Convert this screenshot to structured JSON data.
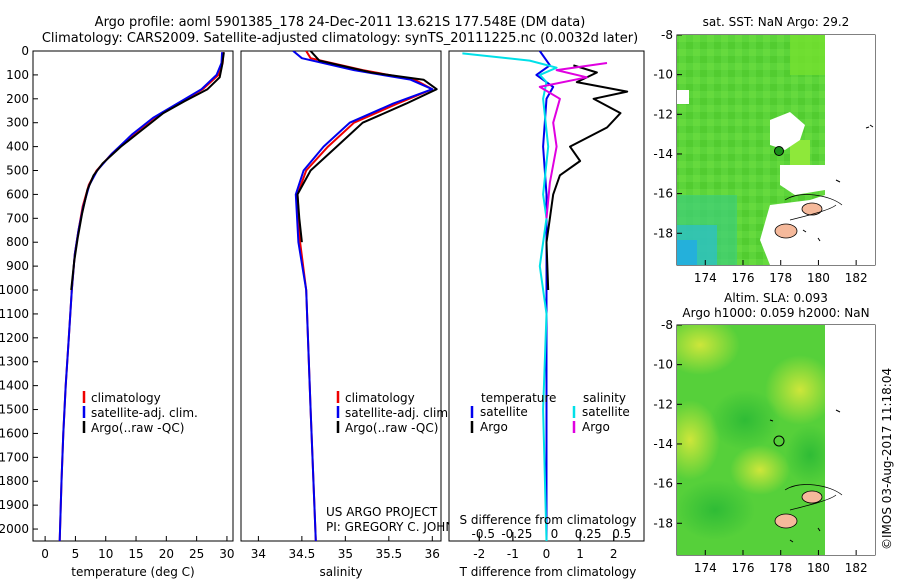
{
  "header": {
    "title_line1": "Argo profile: aoml 5901385_178 24-Dec-2011 13.621S 177.548E (DM data)",
    "title_line2": "Climatology: CARS2009. Satellite-adjusted climatology: synTS_20111225.nc (0.0032d later)"
  },
  "footer": {
    "stamp": "©IMOS 03-Aug-2017 11:18:04"
  },
  "colors": {
    "climatology": "#ee0000",
    "satellite": "#0000ee",
    "argo": "#000000",
    "sal_satellite": "#00e0e8",
    "sal_argo": "#e000e0"
  },
  "chart_data": [
    {
      "type": "line",
      "name": "temperature-profile",
      "xlabel": "temperature (deg C)",
      "ylabel": "",
      "xlim": [
        -2,
        31
      ],
      "ylim": [
        2050,
        0
      ],
      "xticks": [
        0,
        5,
        10,
        15,
        20,
        25,
        30
      ],
      "yticks": [
        0,
        100,
        200,
        300,
        400,
        500,
        600,
        700,
        800,
        900,
        1000,
        1100,
        1200,
        1300,
        1400,
        1500,
        1600,
        1700,
        1800,
        1900,
        2000
      ],
      "legend": [
        "climatology",
        "satellite-adj. clim.",
        "Argo(..raw -QC)"
      ],
      "series": [
        {
          "name": "climatology",
          "color": "#ee0000",
          "points": [
            [
              29.4,
              5
            ],
            [
              29.3,
              50
            ],
            [
              28.6,
              100
            ],
            [
              26,
              160
            ],
            [
              22,
              220
            ],
            [
              18,
              280
            ],
            [
              14.5,
              350
            ],
            [
              11,
              430
            ],
            [
              8.5,
              500
            ],
            [
              7.2,
              560
            ],
            [
              6.2,
              650
            ],
            [
              5.5,
              750
            ],
            [
              4.9,
              850
            ],
            [
              4.4,
              1000
            ],
            [
              3.9,
              1200
            ],
            [
              3.4,
              1400
            ],
            [
              3,
              1600
            ],
            [
              2.7,
              1800
            ],
            [
              2.4,
              2050
            ]
          ]
        },
        {
          "name": "satellite-adj. clim.",
          "color": "#0000ee",
          "points": [
            [
              29.2,
              5
            ],
            [
              29.1,
              50
            ],
            [
              28.3,
              100
            ],
            [
              25.8,
              160
            ],
            [
              21.8,
              220
            ],
            [
              17.8,
              280
            ],
            [
              14.3,
              350
            ],
            [
              11,
              430
            ],
            [
              8.6,
              500
            ],
            [
              7.3,
              560
            ],
            [
              6.3,
              650
            ],
            [
              5.5,
              750
            ],
            [
              4.9,
              850
            ],
            [
              4.4,
              1000
            ],
            [
              3.9,
              1200
            ],
            [
              3.4,
              1400
            ],
            [
              3,
              1600
            ],
            [
              2.7,
              1800
            ],
            [
              2.4,
              2050
            ]
          ]
        },
        {
          "name": "Argo(..raw -QC)",
          "color": "#000000",
          "points": [
            [
              29.5,
              5
            ],
            [
              29.2,
              60
            ],
            [
              28.8,
              110
            ],
            [
              26.8,
              160
            ],
            [
              23,
              210
            ],
            [
              19.5,
              260
            ],
            [
              16,
              330
            ],
            [
              12.5,
              400
            ],
            [
              9.5,
              470
            ],
            [
              8,
              520
            ],
            [
              7,
              580
            ],
            [
              6.1,
              680
            ],
            [
              5.4,
              780
            ],
            [
              4.8,
              880
            ],
            [
              4.3,
              1000
            ]
          ]
        }
      ]
    },
    {
      "type": "line",
      "name": "salinity-profile",
      "xlabel": "salinity",
      "ylabel": "",
      "xlim": [
        33.8,
        36.1
      ],
      "ylim": [
        2050,
        0
      ],
      "xticks": [
        34,
        34.5,
        35,
        35.5,
        36
      ],
      "legend": [
        "climatology",
        "satellite-adj. clim.",
        "Argo(..raw -QC)"
      ],
      "annotations": [
        "US ARGO PROJECT",
        "PI: GREGORY C. JOHNSON"
      ],
      "series": [
        {
          "name": "climatology",
          "color": "#ee0000",
          "points": [
            [
              34.55,
              0
            ],
            [
              34.6,
              30
            ],
            [
              35.2,
              80
            ],
            [
              35.8,
              120
            ],
            [
              36,
              160
            ],
            [
              35.6,
              220
            ],
            [
              35.1,
              300
            ],
            [
              34.8,
              400
            ],
            [
              34.55,
              500
            ],
            [
              34.45,
              600
            ],
            [
              34.48,
              800
            ],
            [
              34.55,
              1000
            ],
            [
              34.6,
              1500
            ],
            [
              34.66,
              2050
            ]
          ]
        },
        {
          "name": "satellite-adj. clim.",
          "color": "#0000ee",
          "points": [
            [
              34.4,
              0
            ],
            [
              34.5,
              30
            ],
            [
              35.1,
              80
            ],
            [
              35.75,
              120
            ],
            [
              36,
              160
            ],
            [
              35.55,
              220
            ],
            [
              35.05,
              300
            ],
            [
              34.75,
              400
            ],
            [
              34.52,
              500
            ],
            [
              34.43,
              600
            ],
            [
              34.46,
              800
            ],
            [
              34.55,
              1000
            ],
            [
              34.6,
              1500
            ],
            [
              34.66,
              2050
            ]
          ]
        },
        {
          "name": "Argo(..raw -QC)",
          "color": "#000000",
          "points": [
            [
              34.6,
              0
            ],
            [
              34.7,
              40
            ],
            [
              35.3,
              90
            ],
            [
              35.9,
              120
            ],
            [
              36.05,
              160
            ],
            [
              35.7,
              220
            ],
            [
              35.2,
              300
            ],
            [
              34.9,
              400
            ],
            [
              34.6,
              500
            ],
            [
              34.45,
              600
            ],
            [
              34.47,
              700
            ],
            [
              34.5,
              800
            ]
          ]
        }
      ]
    },
    {
      "type": "line",
      "name": "difference-profile",
      "xlabel": "T difference from climatology",
      "xlabel_top": "S difference from climatology",
      "xlim": [
        -2.9,
        2.9
      ],
      "ylim": [
        2050,
        0
      ],
      "xticks": [
        -2,
        -1,
        0,
        1,
        2
      ],
      "sticks": [
        "-0.5",
        "-0.25",
        "0",
        "0.25",
        "0.5"
      ],
      "legend_left_title": "temperature",
      "legend_right_title": "salinity",
      "legend": [
        "satellite",
        "Argo",
        "satellite",
        "Argo"
      ],
      "series": [
        {
          "name": "T satellite",
          "color": "#0000ee",
          "points": [
            [
              -0.2,
              0
            ],
            [
              0.1,
              60
            ],
            [
              -0.3,
              100
            ],
            [
              0.2,
              150
            ],
            [
              0,
              200
            ],
            [
              -0.1,
              400
            ],
            [
              0,
              600
            ],
            [
              0,
              1000
            ],
            [
              0,
              2050
            ]
          ]
        },
        {
          "name": "T Argo",
          "color": "#000000",
          "points": [
            [
              0.8,
              60
            ],
            [
              1.5,
              90
            ],
            [
              0.9,
              130
            ],
            [
              2.4,
              170
            ],
            [
              1.4,
              200
            ],
            [
              2.2,
              260
            ],
            [
              1.8,
              320
            ],
            [
              0.7,
              400
            ],
            [
              1.0,
              460
            ],
            [
              0.4,
              520
            ],
            [
              0.2,
              600
            ],
            [
              0.1,
              700
            ],
            [
              0,
              800
            ],
            [
              0.05,
              1000
            ]
          ]
        },
        {
          "name": "S satellite",
          "color": "#00e0e8",
          "points": [
            [
              -2.5,
              10
            ],
            [
              -0.5,
              40
            ],
            [
              0.3,
              70
            ],
            [
              -0.2,
              100
            ],
            [
              0,
              130
            ],
            [
              -0.1,
              200
            ],
            [
              0.05,
              400
            ],
            [
              -0.1,
              600
            ],
            [
              0,
              700
            ],
            [
              -0.2,
              900
            ],
            [
              0,
              1100
            ],
            [
              -0.1,
              1500
            ],
            [
              0,
              2050
            ]
          ]
        },
        {
          "name": "S Argo",
          "color": "#e000e0",
          "points": [
            [
              1.8,
              50
            ],
            [
              0.3,
              80
            ],
            [
              1.2,
              110
            ],
            [
              -0.2,
              150
            ],
            [
              0.4,
              200
            ],
            [
              0.2,
              300
            ],
            [
              0.3,
              400
            ],
            [
              0.1,
              550
            ],
            [
              0,
              700
            ]
          ]
        }
      ]
    },
    {
      "type": "heatmap",
      "name": "sst-map",
      "title": "sat. SST: NaN Argo: 29.2",
      "xticks": [
        "174",
        "176",
        "178",
        "180",
        "182"
      ],
      "yticks": [
        "-8",
        "-10",
        "-12",
        "-14",
        "-16",
        "-18"
      ],
      "xlim": [
        172.5,
        183
      ],
      "ylim": [
        -8,
        -19.6
      ]
    },
    {
      "type": "heatmap",
      "name": "sla-map",
      "title_line1": "Altim. SLA: 0.093",
      "title_line2": "Argo h1000: 0.059 h2000: NaN",
      "xticks": [
        "174",
        "176",
        "178",
        "180",
        "182"
      ],
      "yticks": [
        "-8",
        "-10",
        "-12",
        "-14",
        "-16",
        "-18"
      ],
      "xlim": [
        172.5,
        183
      ],
      "ylim": [
        -8,
        -19.6
      ]
    }
  ]
}
